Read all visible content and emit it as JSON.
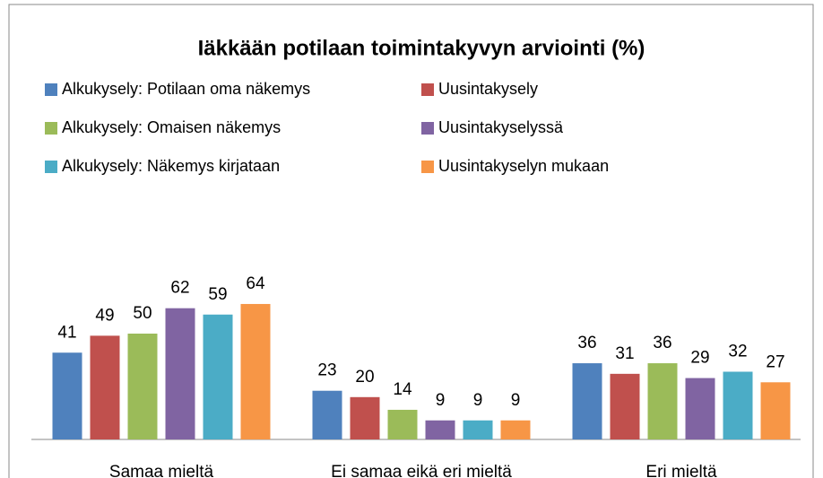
{
  "chart_data": {
    "type": "bar",
    "title": "Iäkkään potilaan toimintakyvyn arviointi (%)",
    "categories": [
      "Samaa mieltä",
      "Ei samaa eikä eri mieltä",
      "Eri mieltä"
    ],
    "series": [
      {
        "name": "Alkukysely: Potilaan oma näkemys",
        "color": "#4f81bd",
        "values": [
          41,
          23,
          36
        ]
      },
      {
        "name": "Uusintakysely",
        "color": "#c0504d",
        "values": [
          49,
          20,
          31
        ]
      },
      {
        "name": "Alkukysely: Omaisen näkemys",
        "color": "#9bbb59",
        "values": [
          50,
          14,
          36
        ]
      },
      {
        "name": "Uusintakyselyssä",
        "color": "#8064a2",
        "values": [
          62,
          9,
          29
        ]
      },
      {
        "name": "Alkukysely: Näkemys kirjataan",
        "color": "#4bacc6",
        "values": [
          59,
          9,
          32
        ]
      },
      {
        "name": "Uusintakyselyn mukaan",
        "color": "#f79646",
        "values": [
          64,
          9,
          27
        ]
      }
    ]
  }
}
